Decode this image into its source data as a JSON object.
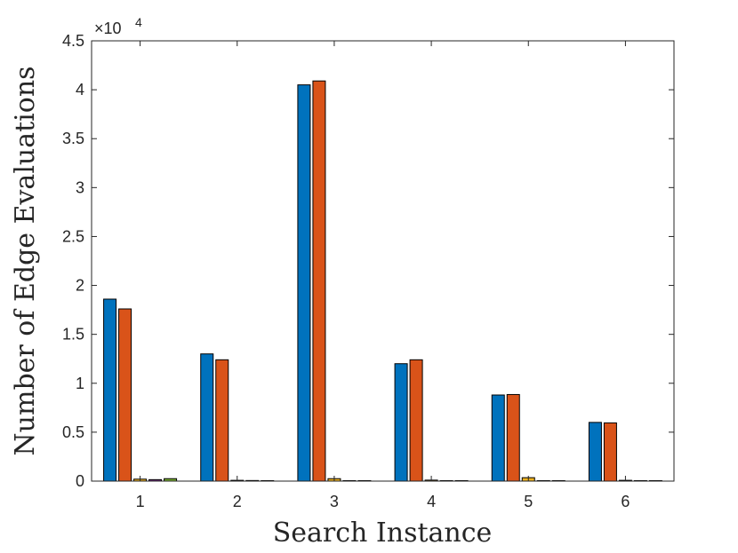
{
  "chart_data": {
    "type": "bar",
    "xlabel": "Search Instance",
    "ylabel": "Number of Edge Evaluations",
    "y_multiplier": {
      "base": "×10",
      "exponent": "4"
    },
    "ylim": [
      0,
      45000
    ],
    "y_ticks": [
      0,
      5000,
      10000,
      15000,
      20000,
      25000,
      30000,
      35000,
      40000,
      45000
    ],
    "y_tick_labels": [
      "0",
      "0.5",
      "1",
      "1.5",
      "2",
      "2.5",
      "3",
      "3.5",
      "4",
      "4.5"
    ],
    "categories": [
      "1",
      "2",
      "3",
      "4",
      "5",
      "6"
    ],
    "series": [
      {
        "color": "#0072BD",
        "values": [
          18600,
          13000,
          40500,
          12000,
          8800,
          6000
        ]
      },
      {
        "color": "#D95319",
        "values": [
          17600,
          12400,
          40900,
          12400,
          8850,
          5950
        ]
      },
      {
        "color": "#EDB120",
        "values": [
          200,
          80,
          250,
          100,
          350,
          80
        ]
      },
      {
        "color": "#7E2F8E",
        "values": [
          150,
          60,
          40,
          30,
          40,
          30
        ]
      },
      {
        "color": "#77AC30",
        "values": [
          250,
          20,
          30,
          20,
          20,
          20
        ]
      }
    ],
    "grid": false,
    "legend": "none"
  }
}
